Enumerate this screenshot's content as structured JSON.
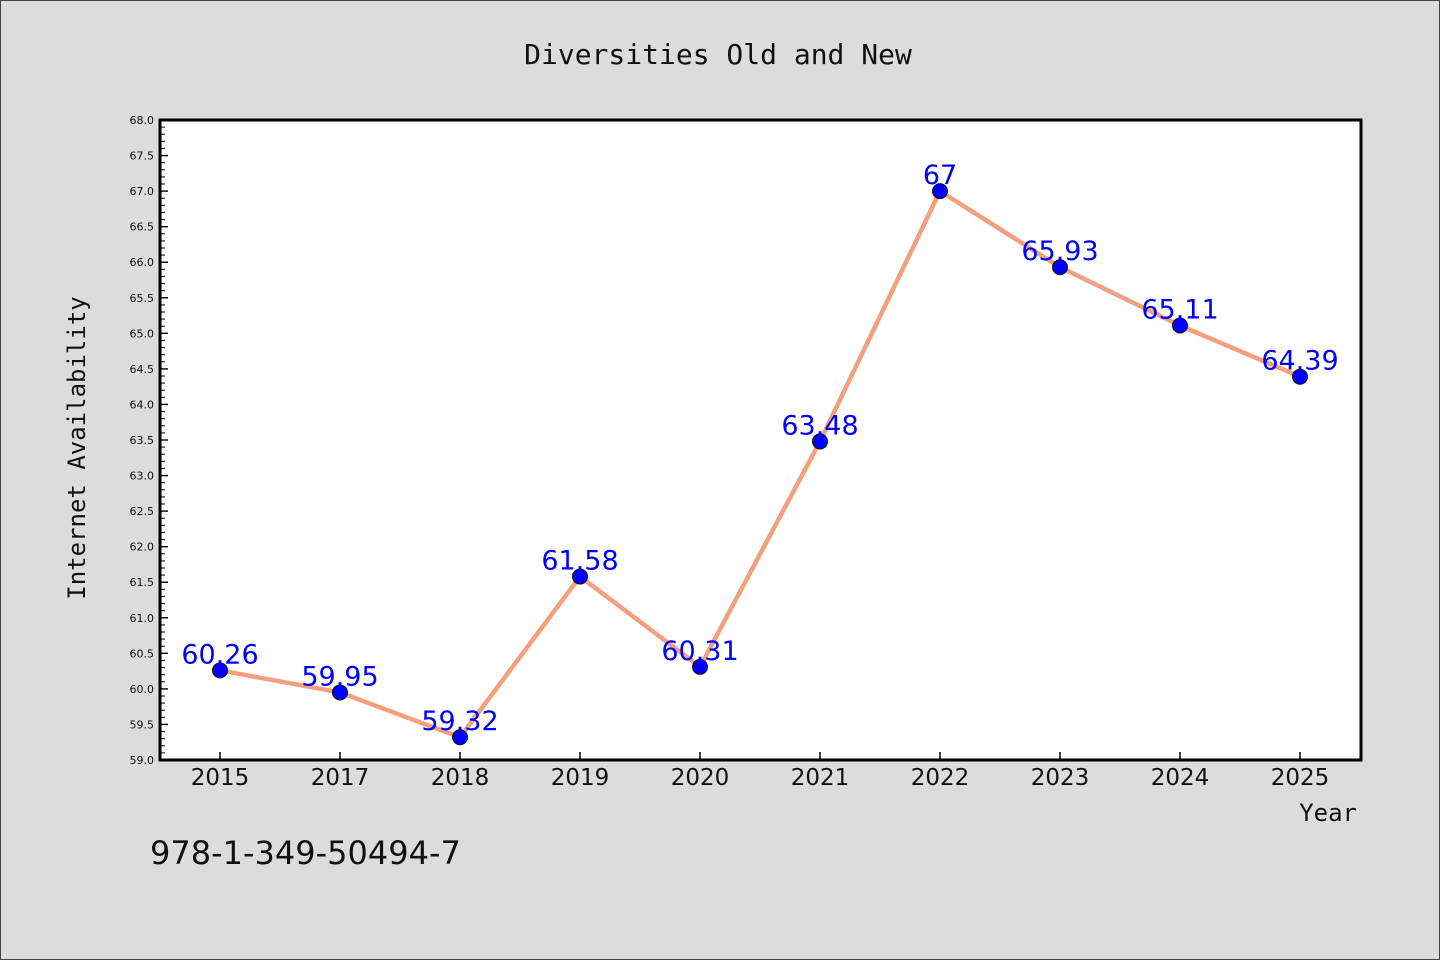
{
  "chart_data": {
    "type": "line",
    "title": "Diversities Old and New",
    "xlabel": "Year",
    "ylabel": "Internet Availability",
    "categories": [
      "2015",
      "2017",
      "2018",
      "2019",
      "2020",
      "2021",
      "2022",
      "2023",
      "2024",
      "2025"
    ],
    "series": [
      {
        "values": [
          60.26,
          59.95,
          59.32,
          61.58,
          60.31,
          63.48,
          67,
          65.93,
          65.11,
          64.39
        ]
      }
    ],
    "data_labels": [
      "60.26",
      "59.95",
      "59.32",
      "61.58",
      "60.31",
      "63.48",
      "67",
      "65.93",
      "65.11",
      "64.39"
    ],
    "ylim": [
      59.0,
      68.0
    ],
    "yticks": [
      "59.0",
      "59.5",
      "60.0",
      "60.5",
      "61.0",
      "61.5",
      "62.0",
      "62.5",
      "63.0",
      "63.5",
      "64.0",
      "64.5",
      "65.0",
      "65.5",
      "66.0",
      "66.5",
      "67.0",
      "67.5",
      "68.0"
    ],
    "grid": false,
    "colors": {
      "line": "#f4a07e",
      "marker": "#0000ff",
      "label": "#0000ff",
      "background": "#dcdcdc",
      "plot_area": "#ffffff"
    }
  },
  "footer_text": "978-1-349-50494-7"
}
